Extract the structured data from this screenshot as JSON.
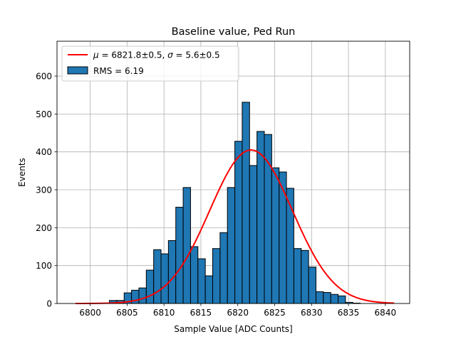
{
  "chart_data": {
    "type": "bar",
    "title": "Baseline value, Ped Run",
    "xlabel": "Sample Value [ADC Counts]",
    "ylabel": "Events",
    "xlim": [
      6795.5,
      6843.3
    ],
    "ylim": [
      0,
      692
    ],
    "xticks": [
      6800,
      6805,
      6810,
      6815,
      6820,
      6825,
      6830,
      6835,
      6840
    ],
    "yticks": [
      0,
      100,
      200,
      300,
      400,
      500,
      600
    ],
    "grid": true,
    "legend_placement": "top-left",
    "bin_start": 6802.6,
    "bin_width": 1,
    "values": [
      8,
      8,
      28,
      35,
      41,
      88,
      142,
      131,
      166,
      254,
      306,
      150,
      118,
      73,
      145,
      187,
      306,
      428,
      531,
      364,
      454,
      446,
      358,
      347,
      304,
      145,
      140,
      96,
      31,
      29,
      24,
      20,
      3,
      1
    ],
    "bar_color": "#1f77b4",
    "fit": {
      "type": "gaussian",
      "mu": 6821.8,
      "sigma": 5.6,
      "amplitude": 405,
      "x_range": [
        6798,
        6841.2
      ],
      "color": "#ff0000"
    },
    "legend": [
      {
        "kind": "line",
        "mu_sym": "μ",
        "eq1": " = 6821.8±0.5, ",
        "sigma_sym": "σ",
        "eq2": " = 5.6±0.5",
        "color": "#ff0000"
      },
      {
        "kind": "patch",
        "label": "RMS = 6.19",
        "color": "#1f77b4"
      }
    ]
  }
}
